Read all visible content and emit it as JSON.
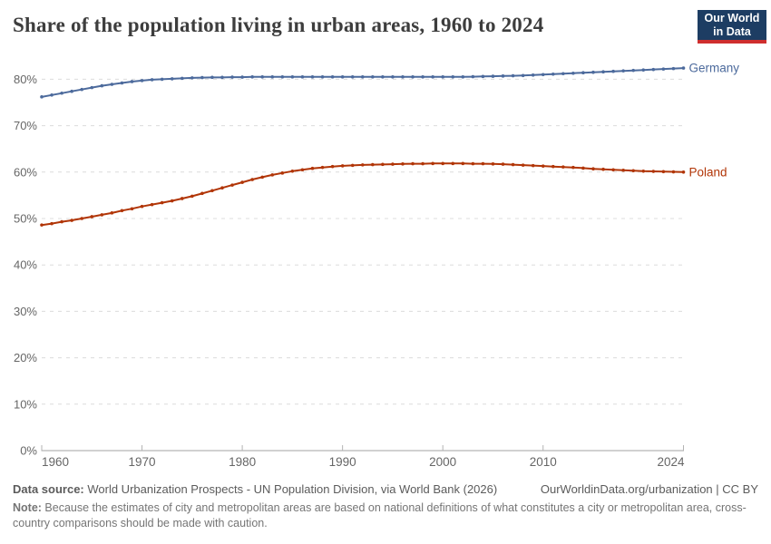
{
  "header": {
    "title": "Share of the population living in urban areas, 1960 to 2024"
  },
  "logo": {
    "line1": "Our World",
    "line2": "in Data",
    "bg_color": "#1d3d63",
    "accent_color": "#cf2e2e"
  },
  "chart_data": {
    "type": "line",
    "title": "Share of the population living in urban areas, 1960 to 2024",
    "xlabel": "",
    "ylabel": "",
    "grid": true,
    "ylim": [
      0,
      85
    ],
    "yticks": [
      0,
      10,
      20,
      30,
      40,
      50,
      60,
      70,
      80
    ],
    "ytick_suffix": "%",
    "xticks": [
      1960,
      1970,
      1980,
      1990,
      2000,
      2010,
      2024
    ],
    "legend_position": "right-of-line-end",
    "x": [
      1960,
      1961,
      1962,
      1963,
      1964,
      1965,
      1966,
      1967,
      1968,
      1969,
      1970,
      1971,
      1972,
      1973,
      1974,
      1975,
      1976,
      1977,
      1978,
      1979,
      1980,
      1981,
      1982,
      1983,
      1984,
      1985,
      1986,
      1987,
      1988,
      1989,
      1990,
      1991,
      1992,
      1993,
      1994,
      1995,
      1996,
      1997,
      1998,
      1999,
      2000,
      2001,
      2002,
      2003,
      2004,
      2005,
      2006,
      2007,
      2008,
      2009,
      2010,
      2011,
      2012,
      2013,
      2014,
      2015,
      2016,
      2017,
      2018,
      2019,
      2020,
      2021,
      2022,
      2023,
      2024
    ],
    "series": [
      {
        "name": "Germany",
        "color": "#4C6A9C",
        "values": [
          76.2,
          76.6,
          77.0,
          77.4,
          77.8,
          78.2,
          78.6,
          78.9,
          79.2,
          79.5,
          79.7,
          79.9,
          80.0,
          80.1,
          80.2,
          80.3,
          80.35,
          80.4,
          80.4,
          80.45,
          80.45,
          80.5,
          80.5,
          80.5,
          80.5,
          80.5,
          80.5,
          80.5,
          80.5,
          80.5,
          80.5,
          80.5,
          80.5,
          80.5,
          80.5,
          80.5,
          80.5,
          80.5,
          80.5,
          80.5,
          80.5,
          80.5,
          80.5,
          80.55,
          80.6,
          80.65,
          80.7,
          80.75,
          80.8,
          80.9,
          81.0,
          81.1,
          81.2,
          81.3,
          81.4,
          81.5,
          81.6,
          81.7,
          81.8,
          81.9,
          82.0,
          82.1,
          82.2,
          82.3,
          82.4
        ]
      },
      {
        "name": "Poland",
        "color": "#B13507",
        "values": [
          48.6,
          48.9,
          49.3,
          49.6,
          50.0,
          50.4,
          50.8,
          51.2,
          51.7,
          52.1,
          52.6,
          53.0,
          53.4,
          53.8,
          54.3,
          54.8,
          55.4,
          56.0,
          56.6,
          57.2,
          57.8,
          58.4,
          58.9,
          59.4,
          59.8,
          60.2,
          60.5,
          60.8,
          61.0,
          61.2,
          61.35,
          61.45,
          61.55,
          61.6,
          61.65,
          61.7,
          61.75,
          61.8,
          61.8,
          61.85,
          61.85,
          61.85,
          61.85,
          61.8,
          61.8,
          61.75,
          61.7,
          61.6,
          61.5,
          61.4,
          61.3,
          61.2,
          61.1,
          61.0,
          60.85,
          60.7,
          60.6,
          60.5,
          60.4,
          60.3,
          60.2,
          60.15,
          60.1,
          60.05,
          60.0
        ]
      }
    ]
  },
  "footer": {
    "source_label": "Data source:",
    "source_text": " World Urbanization Prospects - UN Population Division, via World Bank (2026)",
    "link_text": "OurWorldinData.org/urbanization | CC BY",
    "note_label": "Note:",
    "note_text": " Because the estimates of city and metropolitan areas are based on national definitions of what constitutes a city or metropolitan area, cross-country comparisons should be made with caution."
  }
}
